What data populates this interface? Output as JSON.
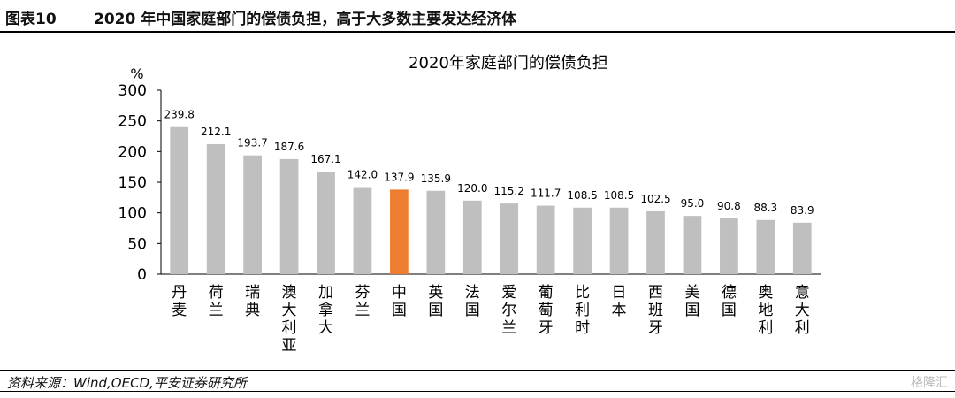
{
  "header": {
    "figure_label": "图表10",
    "figure_title": "2020 年中国家庭部门的偿债负担，高于大多数主要发达经济体"
  },
  "footer": {
    "source": "资料来源：Wind,OECD,平安证券研究所",
    "watermark": "格隆汇"
  },
  "colors": {
    "bar_default": "#bfbfbf",
    "bar_highlight": "#ed7d31",
    "axis": "#000000"
  },
  "chart_data": {
    "type": "bar",
    "title": "2020年家庭部门的偿债负担",
    "ylabel": "%",
    "xlabel": "",
    "ylim": [
      0,
      300
    ],
    "yticks": [
      0,
      50,
      100,
      150,
      200,
      250,
      300
    ],
    "grid": false,
    "highlight_category": "中国",
    "categories": [
      "丹麦",
      "荷兰",
      "瑞典",
      "澳大利亚",
      "加拿大",
      "芬兰",
      "中国",
      "英国",
      "法国",
      "爱尔兰",
      "葡萄牙",
      "比利时",
      "日本",
      "西班牙",
      "美国",
      "德国",
      "奥地利",
      "意大利"
    ],
    "values": [
      239.8,
      212.1,
      193.7,
      187.6,
      167.1,
      142.0,
      137.9,
      135.9,
      120.0,
      115.2,
      111.7,
      108.5,
      108.5,
      102.5,
      95.0,
      90.8,
      88.3,
      83.9
    ],
    "value_labels": [
      "239.8",
      "212.1",
      "193.7",
      "187.6",
      "167.1",
      "142.0",
      "137.9",
      "135.9",
      "120.0",
      "115.2",
      "111.7",
      "108.5",
      "108.5",
      "102.5",
      "95.0",
      "90.8",
      "88.3",
      "83.9"
    ]
  }
}
